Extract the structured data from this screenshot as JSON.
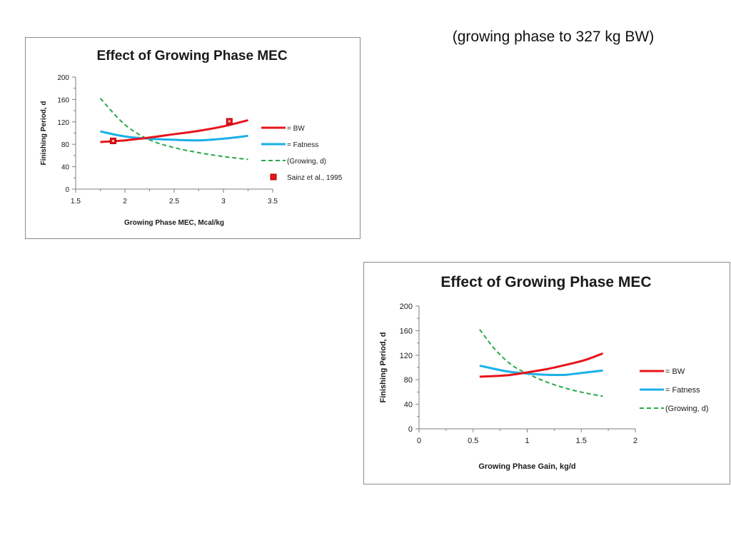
{
  "slide": {
    "title": "(growing phase to 327 kg  BW)"
  },
  "colors": {
    "bw": "#e8141b",
    "fatness": "#1ab0e8",
    "growing": "#27a84a",
    "sainz": "#e8141b",
    "axis": "#7f7f7f"
  },
  "chart_data": [
    {
      "type": "line",
      "title": "Effect of Growing Phase MEC",
      "xlabel": "Growing Phase  MEC,  Mcal/kg",
      "ylabel": "Finishing Period, d",
      "xlim": [
        1.5,
        3.5
      ],
      "ylim": [
        0,
        200
      ],
      "xticks": [
        "1.5",
        "2",
        "2.5",
        "3",
        "3.5"
      ],
      "yticks": [
        "0",
        "40",
        "80",
        "120",
        "160",
        "200"
      ],
      "grid": false,
      "legend_position": "right",
      "series": [
        {
          "name": "= BW",
          "key": "bw",
          "style": "solid",
          "x": [
            1.75,
            2.0,
            2.25,
            2.5,
            2.75,
            3.0,
            3.25
          ],
          "y": [
            84,
            87,
            92,
            98,
            104,
            112,
            123
          ]
        },
        {
          "name": "= Fatness",
          "key": "fatness",
          "style": "solid",
          "x": [
            1.75,
            2.0,
            2.25,
            2.5,
            2.75,
            3.0,
            3.25
          ],
          "y": [
            103,
            94,
            90,
            88,
            87,
            90,
            95
          ]
        },
        {
          "name": "(Growing, d)",
          "key": "growing",
          "style": "dashed",
          "x": [
            1.75,
            2.0,
            2.25,
            2.5,
            2.75,
            3.0,
            3.25
          ],
          "y": [
            162,
            115,
            88,
            74,
            65,
            58,
            53
          ]
        },
        {
          "name": "Sainz et al., 1995",
          "key": "sainz",
          "style": "marker",
          "x": [
            1.88,
            3.06
          ],
          "y": [
            86,
            121
          ]
        }
      ]
    },
    {
      "type": "line",
      "title": "Effect of Growing Phase MEC",
      "xlabel": "Growing Phase  Gain,  kg/d",
      "ylabel": "Finishing Period, d",
      "xlim": [
        0,
        2
      ],
      "ylim": [
        0,
        200
      ],
      "xticks": [
        "0",
        "0.5",
        "1",
        "1.5",
        "2"
      ],
      "yticks": [
        "0",
        "40",
        "80",
        "120",
        "160",
        "200"
      ],
      "grid": false,
      "legend_position": "right",
      "series": [
        {
          "name": "= BW",
          "key": "bw",
          "style": "solid",
          "x": [
            0.56,
            0.8,
            1.0,
            1.2,
            1.4,
            1.55,
            1.7
          ],
          "y": [
            85,
            87,
            92,
            98,
            106,
            113,
            123
          ]
        },
        {
          "name": "= Fatness",
          "key": "fatness",
          "style": "solid",
          "x": [
            0.56,
            0.8,
            1.0,
            1.2,
            1.35,
            1.5,
            1.7
          ],
          "y": [
            103,
            94,
            90,
            88,
            88,
            91,
            95
          ]
        },
        {
          "name": "(Growing, d)",
          "key": "growing",
          "style": "dashed",
          "x": [
            0.56,
            0.7,
            0.85,
            1.0,
            1.2,
            1.4,
            1.55,
            1.7
          ],
          "y": [
            162,
            130,
            105,
            90,
            75,
            64,
            58,
            53
          ]
        }
      ]
    }
  ]
}
